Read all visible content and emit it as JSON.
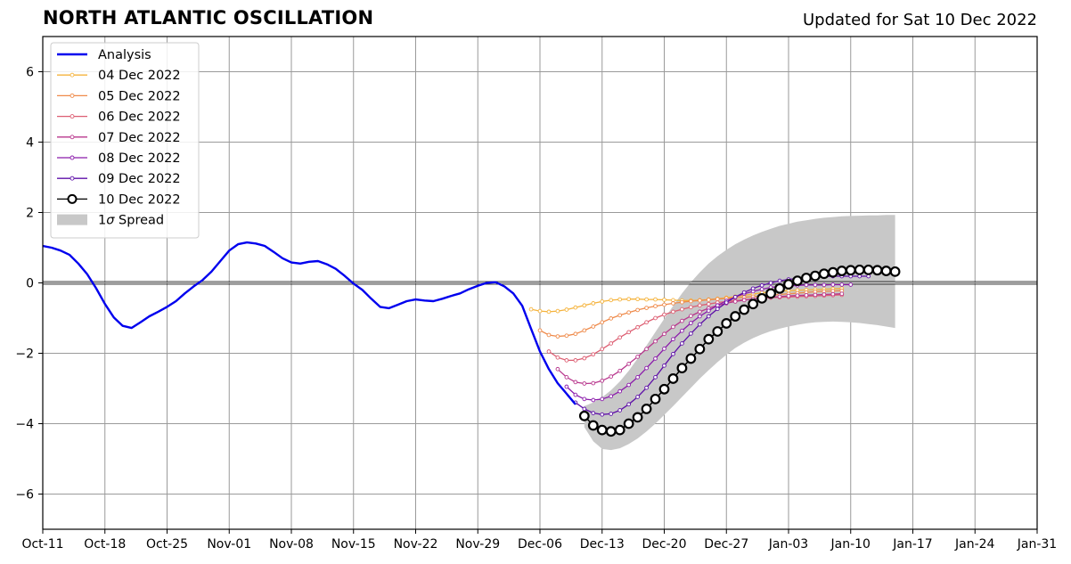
{
  "chart_data": {
    "type": "line",
    "title": "NORTH ATLANTIC OSCILLATION",
    "subtitle": "Updated for Sat 10 Dec 2022",
    "xlabel": "",
    "ylabel": "",
    "x_start": "2022-10-11",
    "x_end": "2023-01-31",
    "xlim_days": [
      0,
      112
    ],
    "ylim": [
      -7,
      7
    ],
    "x_ticks": [
      "Oct-11",
      "Oct-18",
      "Oct-25",
      "Nov-01",
      "Nov-08",
      "Nov-15",
      "Nov-22",
      "Nov-29",
      "Dec-06",
      "Dec-13",
      "Dec-20",
      "Dec-27",
      "Jan-03",
      "Jan-10",
      "Jan-17",
      "Jan-24",
      "Jan-31"
    ],
    "y_ticks": [
      -6,
      -4,
      -2,
      0,
      2,
      4,
      6
    ],
    "grid": true,
    "zero_line": true,
    "legend_position": "top-left",
    "analysis": {
      "name": "Analysis",
      "color": "#0000ee",
      "x": [
        "2022-10-11",
        "2022-10-12",
        "2022-10-13",
        "2022-10-14",
        "2022-10-15",
        "2022-10-16",
        "2022-10-17",
        "2022-10-18",
        "2022-10-19",
        "2022-10-20",
        "2022-10-21",
        "2022-10-22",
        "2022-10-23",
        "2022-10-24",
        "2022-10-25",
        "2022-10-26",
        "2022-10-27",
        "2022-10-28",
        "2022-10-29",
        "2022-10-30",
        "2022-10-31",
        "2022-11-01",
        "2022-11-02",
        "2022-11-03",
        "2022-11-04",
        "2022-11-05",
        "2022-11-06",
        "2022-11-07",
        "2022-11-08",
        "2022-11-09",
        "2022-11-10",
        "2022-11-11",
        "2022-11-12",
        "2022-11-13",
        "2022-11-14",
        "2022-11-15",
        "2022-11-16",
        "2022-11-17",
        "2022-11-18",
        "2022-11-19",
        "2022-11-20",
        "2022-11-21",
        "2022-11-22",
        "2022-11-23",
        "2022-11-24",
        "2022-11-25",
        "2022-11-26",
        "2022-11-27",
        "2022-11-28",
        "2022-11-29",
        "2022-11-30",
        "2022-12-01",
        "2022-12-02",
        "2022-12-03",
        "2022-12-04",
        "2022-12-05",
        "2022-12-06",
        "2022-12-07",
        "2022-12-08",
        "2022-12-09",
        "2022-12-10"
      ],
      "y": [
        1.05,
        1.0,
        0.92,
        0.8,
        0.55,
        0.25,
        -0.15,
        -0.6,
        -0.98,
        -1.22,
        -1.28,
        -1.12,
        -0.95,
        -0.82,
        -0.68,
        -0.52,
        -0.3,
        -0.1,
        0.08,
        0.32,
        0.62,
        0.92,
        1.1,
        1.15,
        1.12,
        1.05,
        0.88,
        0.7,
        0.58,
        0.55,
        0.6,
        0.62,
        0.53,
        0.4,
        0.2,
        -0.02,
        -0.2,
        -0.45,
        -0.68,
        -0.72,
        -0.62,
        -0.52,
        -0.47,
        -0.5,
        -0.52,
        -0.45,
        -0.37,
        -0.3,
        -0.18,
        -0.08,
        0.0,
        0.02,
        -0.1,
        -0.3,
        -0.65,
        -1.3,
        -1.95,
        -2.45,
        -2.85,
        -3.15,
        -3.45
      ]
    },
    "forecasts": [
      {
        "name": "04 Dec 2022",
        "color": "#f5b33c",
        "start": "2022-12-05",
        "y": [
          -0.75,
          -0.8,
          -0.82,
          -0.8,
          -0.76,
          -0.7,
          -0.64,
          -0.58,
          -0.53,
          -0.49,
          -0.47,
          -0.46,
          -0.46,
          -0.47,
          -0.47,
          -0.48,
          -0.49,
          -0.5,
          -0.5,
          -0.49,
          -0.47,
          -0.45,
          -0.42,
          -0.39,
          -0.35,
          -0.32,
          -0.28,
          -0.26,
          -0.24,
          -0.22,
          -0.21,
          -0.2,
          -0.19,
          -0.18,
          -0.17,
          -0.16
        ]
      },
      {
        "name": "05 Dec 2022",
        "color": "#ef8a4a",
        "start": "2022-12-06",
        "y": [
          -1.35,
          -1.48,
          -1.52,
          -1.5,
          -1.45,
          -1.35,
          -1.24,
          -1.12,
          -1.01,
          -0.92,
          -0.84,
          -0.77,
          -0.71,
          -0.66,
          -0.62,
          -0.58,
          -0.55,
          -0.52,
          -0.5,
          -0.48,
          -0.46,
          -0.44,
          -0.42,
          -0.41,
          -0.39,
          -0.37,
          -0.35,
          -0.33,
          -0.31,
          -0.29,
          -0.27,
          -0.25,
          -0.24,
          -0.23,
          -0.22
        ]
      },
      {
        "name": "06 Dec 2022",
        "color": "#dd5e72",
        "start": "2022-12-07",
        "y": [
          -1.95,
          -2.12,
          -2.2,
          -2.2,
          -2.14,
          -2.03,
          -1.88,
          -1.72,
          -1.55,
          -1.4,
          -1.26,
          -1.12,
          -1.0,
          -0.9,
          -0.82,
          -0.75,
          -0.69,
          -0.64,
          -0.6,
          -0.56,
          -0.53,
          -0.5,
          -0.48,
          -0.46,
          -0.44,
          -0.42,
          -0.41,
          -0.4,
          -0.39,
          -0.38,
          -0.37,
          -0.36,
          -0.35,
          -0.34
        ]
      },
      {
        "name": "07 Dec 2022",
        "color": "#b8378d",
        "start": "2022-12-08",
        "y": [
          -2.45,
          -2.68,
          -2.82,
          -2.86,
          -2.85,
          -2.78,
          -2.66,
          -2.5,
          -2.3,
          -2.1,
          -1.88,
          -1.66,
          -1.45,
          -1.25,
          -1.08,
          -0.94,
          -0.82,
          -0.72,
          -0.64,
          -0.58,
          -0.53,
          -0.49,
          -0.46,
          -0.43,
          -0.41,
          -0.39,
          -0.37,
          -0.36,
          -0.35,
          -0.34,
          -0.33,
          -0.32,
          -0.31
        ]
      },
      {
        "name": "08 Dec 2022",
        "color": "#8b1bab",
        "start": "2022-12-09",
        "y": [
          -2.95,
          -3.18,
          -3.3,
          -3.33,
          -3.3,
          -3.22,
          -3.08,
          -2.9,
          -2.68,
          -2.42,
          -2.15,
          -1.87,
          -1.6,
          -1.36,
          -1.14,
          -0.95,
          -0.79,
          -0.64,
          -0.51,
          -0.4,
          -0.31,
          -0.24,
          -0.18,
          -0.13,
          -0.1,
          -0.08,
          -0.07,
          -0.06,
          -0.06,
          -0.06,
          -0.05,
          -0.05,
          -0.05
        ]
      },
      {
        "name": "09 Dec 2022",
        "color": "#5e0fa8",
        "start": "2022-12-10",
        "y": [
          -3.4,
          -3.58,
          -3.7,
          -3.74,
          -3.72,
          -3.62,
          -3.45,
          -3.24,
          -2.98,
          -2.68,
          -2.35,
          -2.02,
          -1.72,
          -1.44,
          -1.18,
          -0.95,
          -0.74,
          -0.56,
          -0.4,
          -0.27,
          -0.16,
          -0.07,
          0.0,
          0.06,
          0.1,
          0.13,
          0.15,
          0.17,
          0.18,
          0.19,
          0.19,
          0.19,
          0.19,
          0.19
        ]
      },
      {
        "name": "10 Dec 2022",
        "color": "#000000",
        "start": "2022-12-11",
        "y": [
          -3.78,
          -4.05,
          -4.18,
          -4.22,
          -4.18,
          -4.0,
          -3.82,
          -3.58,
          -3.3,
          -3.02,
          -2.72,
          -2.42,
          -2.15,
          -1.88,
          -1.6,
          -1.38,
          -1.15,
          -0.95,
          -0.76,
          -0.6,
          -0.44,
          -0.3,
          -0.16,
          -0.04,
          0.06,
          0.14,
          0.2,
          0.26,
          0.3,
          0.34,
          0.36,
          0.37,
          0.37,
          0.36,
          0.34,
          0.32
        ]
      }
    ],
    "spread": {
      "name": "1σ Spread",
      "color": "#c8c8c8",
      "start": "2022-12-11",
      "upper": [
        -3.5,
        -3.4,
        -3.25,
        -3.05,
        -2.8,
        -2.5,
        -2.15,
        -1.78,
        -1.4,
        -1.02,
        -0.65,
        -0.3,
        0.02,
        0.3,
        0.55,
        0.76,
        0.94,
        1.1,
        1.23,
        1.35,
        1.45,
        1.54,
        1.62,
        1.68,
        1.74,
        1.78,
        1.82,
        1.85,
        1.87,
        1.89,
        1.9,
        1.91,
        1.92,
        1.92,
        1.93,
        1.93
      ],
      "lower": [
        -4.1,
        -4.5,
        -4.72,
        -4.75,
        -4.7,
        -4.58,
        -4.42,
        -4.22,
        -4.0,
        -3.75,
        -3.5,
        -3.24,
        -2.98,
        -2.72,
        -2.48,
        -2.25,
        -2.04,
        -1.85,
        -1.7,
        -1.57,
        -1.46,
        -1.37,
        -1.3,
        -1.24,
        -1.19,
        -1.15,
        -1.12,
        -1.11,
        -1.1,
        -1.11,
        -1.12,
        -1.14,
        -1.17,
        -1.2,
        -1.24,
        -1.28
      ]
    },
    "legend": {
      "analysis": "Analysis",
      "spread_prefix": "1",
      "spread_sigma": "σ",
      "spread_suffix": " Spread"
    }
  }
}
